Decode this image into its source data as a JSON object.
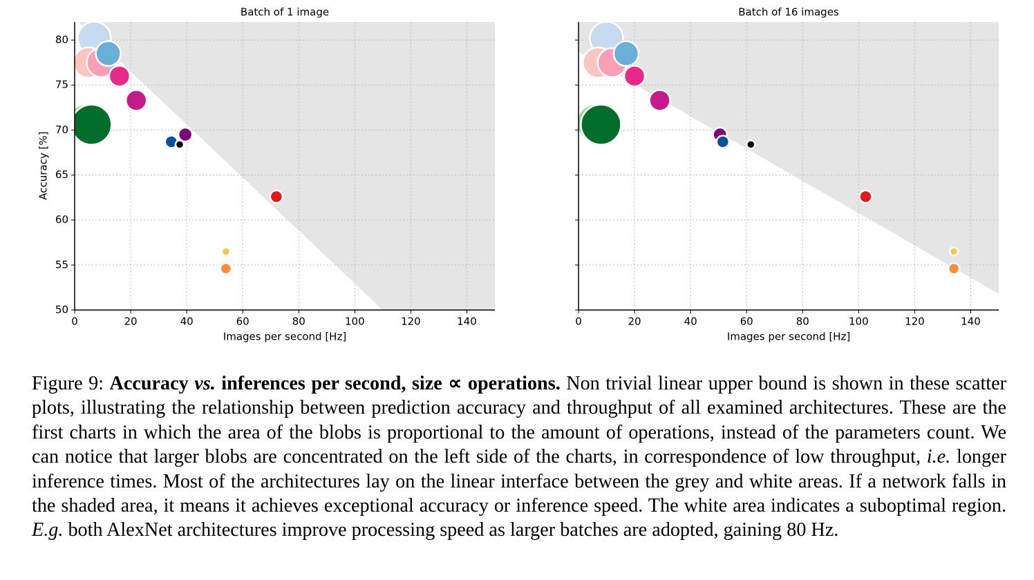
{
  "chart_data": [
    {
      "type": "scatter",
      "title": "Batch of 1 image",
      "x_label": "Images per second [Hz]",
      "y_label": "Accuracy [%]",
      "xlim": [
        0,
        150
      ],
      "ylim": [
        50,
        82
      ],
      "xticks": [
        0,
        20,
        40,
        60,
        80,
        100,
        120,
        140
      ],
      "yticks": [
        50,
        55,
        60,
        65,
        70,
        75,
        80
      ],
      "show_ytick_labels": true,
      "grid": true,
      "shade_color": "#e5e5e5",
      "bound_x": [
        0,
        110
      ],
      "bound_y": [
        82.4,
        50
      ],
      "series": [
        {
          "x": [
            4,
            6,
            7,
            5,
            9.5,
            12,
            16,
            22,
            39.5,
            34.5,
            37.5,
            72,
            54,
            54
          ],
          "values": [
            70.8,
            70.6,
            80.2,
            77.5,
            77.5,
            78.5,
            76,
            73.3,
            69.5,
            68.7,
            68.4,
            62.6,
            56.5,
            54.6
          ],
          "sizes": [
            729,
            841,
            576,
            484,
            441,
            324,
            225,
            225,
            100,
            81,
            36,
            81,
            36,
            64
          ],
          "colors": [
            "#a1d99b",
            "#006d2c",
            "#c6dbef",
            "#fcc5c0",
            "#fa9fb5",
            "#6baed6",
            "#e7298a",
            "#c51b8a",
            "#7a0177",
            "#08519c",
            "#000000",
            "#e31a1c",
            "#fec44f",
            "#fd8d3c"
          ]
        }
      ]
    },
    {
      "type": "scatter",
      "title": "Batch of 16 images",
      "x_label": "Images per second [Hz]",
      "xlim": [
        0,
        150
      ],
      "ylim": [
        50,
        82
      ],
      "xticks": [
        0,
        20,
        40,
        60,
        80,
        100,
        120,
        140
      ],
      "yticks": [
        50,
        55,
        60,
        65,
        70,
        75,
        80
      ],
      "show_ytick_labels": false,
      "grid": true,
      "shade_color": "#e5e5e5",
      "bound_x": [
        0,
        150
      ],
      "bound_y": [
        78.7,
        51.8
      ],
      "series": [
        {
          "x": [
            6,
            8,
            10,
            7,
            12,
            17,
            20,
            29,
            50.5,
            51.5,
            61.5,
            102.5,
            134,
            134
          ],
          "values": [
            70.8,
            70.6,
            80.2,
            77.5,
            77.5,
            78.5,
            76,
            73.3,
            69.5,
            68.7,
            68.4,
            62.6,
            56.5,
            54.6
          ],
          "sizes": [
            729,
            841,
            576,
            484,
            441,
            324,
            225,
            225,
            100,
            81,
            36,
            81,
            36,
            64
          ],
          "colors": [
            "#a1d99b",
            "#006d2c",
            "#c6dbef",
            "#fcc5c0",
            "#fa9fb5",
            "#6baed6",
            "#e7298a",
            "#c51b8a",
            "#7a0177",
            "#08519c",
            "#000000",
            "#e31a1c",
            "#fec44f",
            "#fd8d3c"
          ]
        }
      ]
    }
  ],
  "caption": {
    "runs": [
      "Figure 9:",
      "Accuracy",
      "vs.",
      "inferences per second, size ∝ operations.",
      "Non trivial linear upper bound is shown in these scatter plots, illustrating the relationship between prediction accuracy and throughput of all examined architectures. These are the first charts in which the area of the blobs is proportional to the amount of operations, instead of the parameters count. We can notice that larger blobs are concentrated on the left side of the charts, in correspondence of low throughput,",
      "i.e.",
      "longer inference times.  Most of the architectures lay on the linear interface between the grey and white areas. If a network falls in the shaded area, it means it achieves exceptional accuracy or inference speed.  The white area indicates a suboptimal region.",
      "E.g.",
      "both AlexNet architectures improve processing speed as larger batches are adopted, gaining 80 Hz."
    ]
  }
}
